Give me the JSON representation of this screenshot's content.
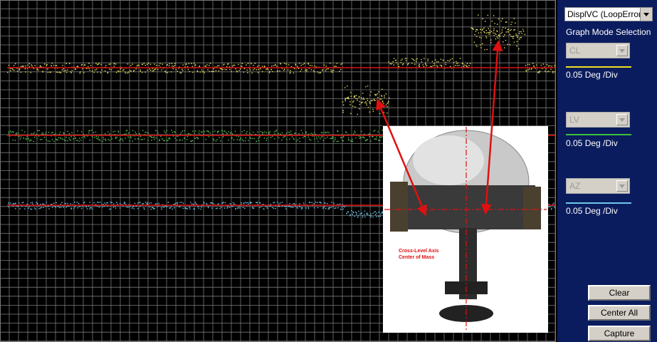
{
  "panel": {
    "dropdown": "DisplVC (LoopError",
    "mode_label": "Graph Mode Selection",
    "channels": [
      {
        "name": "CL",
        "scale": "0.05 Deg /Div"
      },
      {
        "name": "LV",
        "scale": "0.05 Deg /Div"
      },
      {
        "name": "AZ",
        "scale": "0.05 Deg /Div"
      }
    ],
    "buttons": [
      "Clear",
      "Center All",
      "Capture"
    ]
  },
  "photo": {
    "caption": [
      "Cross-Level Axis",
      "Center of Mass"
    ]
  }
}
